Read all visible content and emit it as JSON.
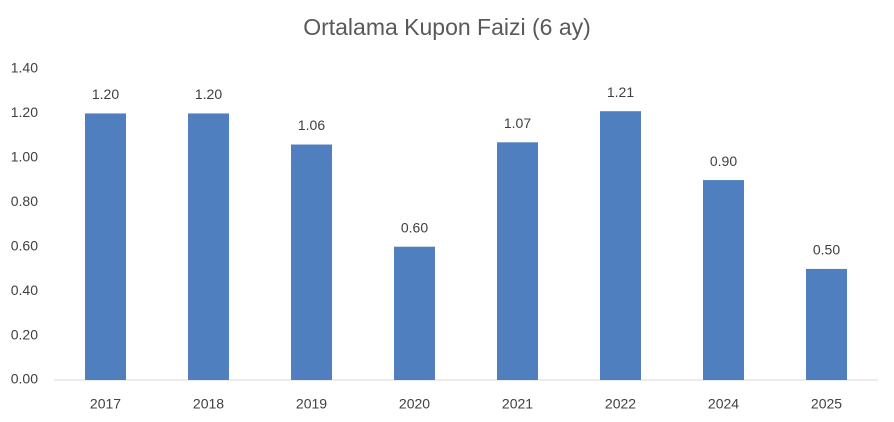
{
  "chart_data": {
    "type": "bar",
    "title": "Ortalama Kupon Faizi (6 ay)",
    "categories": [
      "2017",
      "2018",
      "2019",
      "2020",
      "2021",
      "2022",
      "2024",
      "2025"
    ],
    "values": [
      1.2,
      1.2,
      1.06,
      0.6,
      1.07,
      1.21,
      0.9,
      0.5
    ],
    "value_labels": [
      "1.20",
      "1.20",
      "1.06",
      "0.60",
      "1.07",
      "1.21",
      "0.90",
      "0.50"
    ],
    "color": "#4f7fbe",
    "ylim": [
      0,
      1.4
    ],
    "yticks": [
      {
        "value": 0,
        "label": "0.00"
      },
      {
        "value": 0.2,
        "label": "0.20"
      },
      {
        "value": 0.4,
        "label": "0.40"
      },
      {
        "value": 0.6,
        "label": "0.60"
      },
      {
        "value": 0.8,
        "label": "0.80"
      },
      {
        "value": 1.0,
        "label": "1.00"
      },
      {
        "value": 1.2,
        "label": "1.20"
      },
      {
        "value": 1.4,
        "label": "1.40"
      }
    ],
    "grid": false
  }
}
